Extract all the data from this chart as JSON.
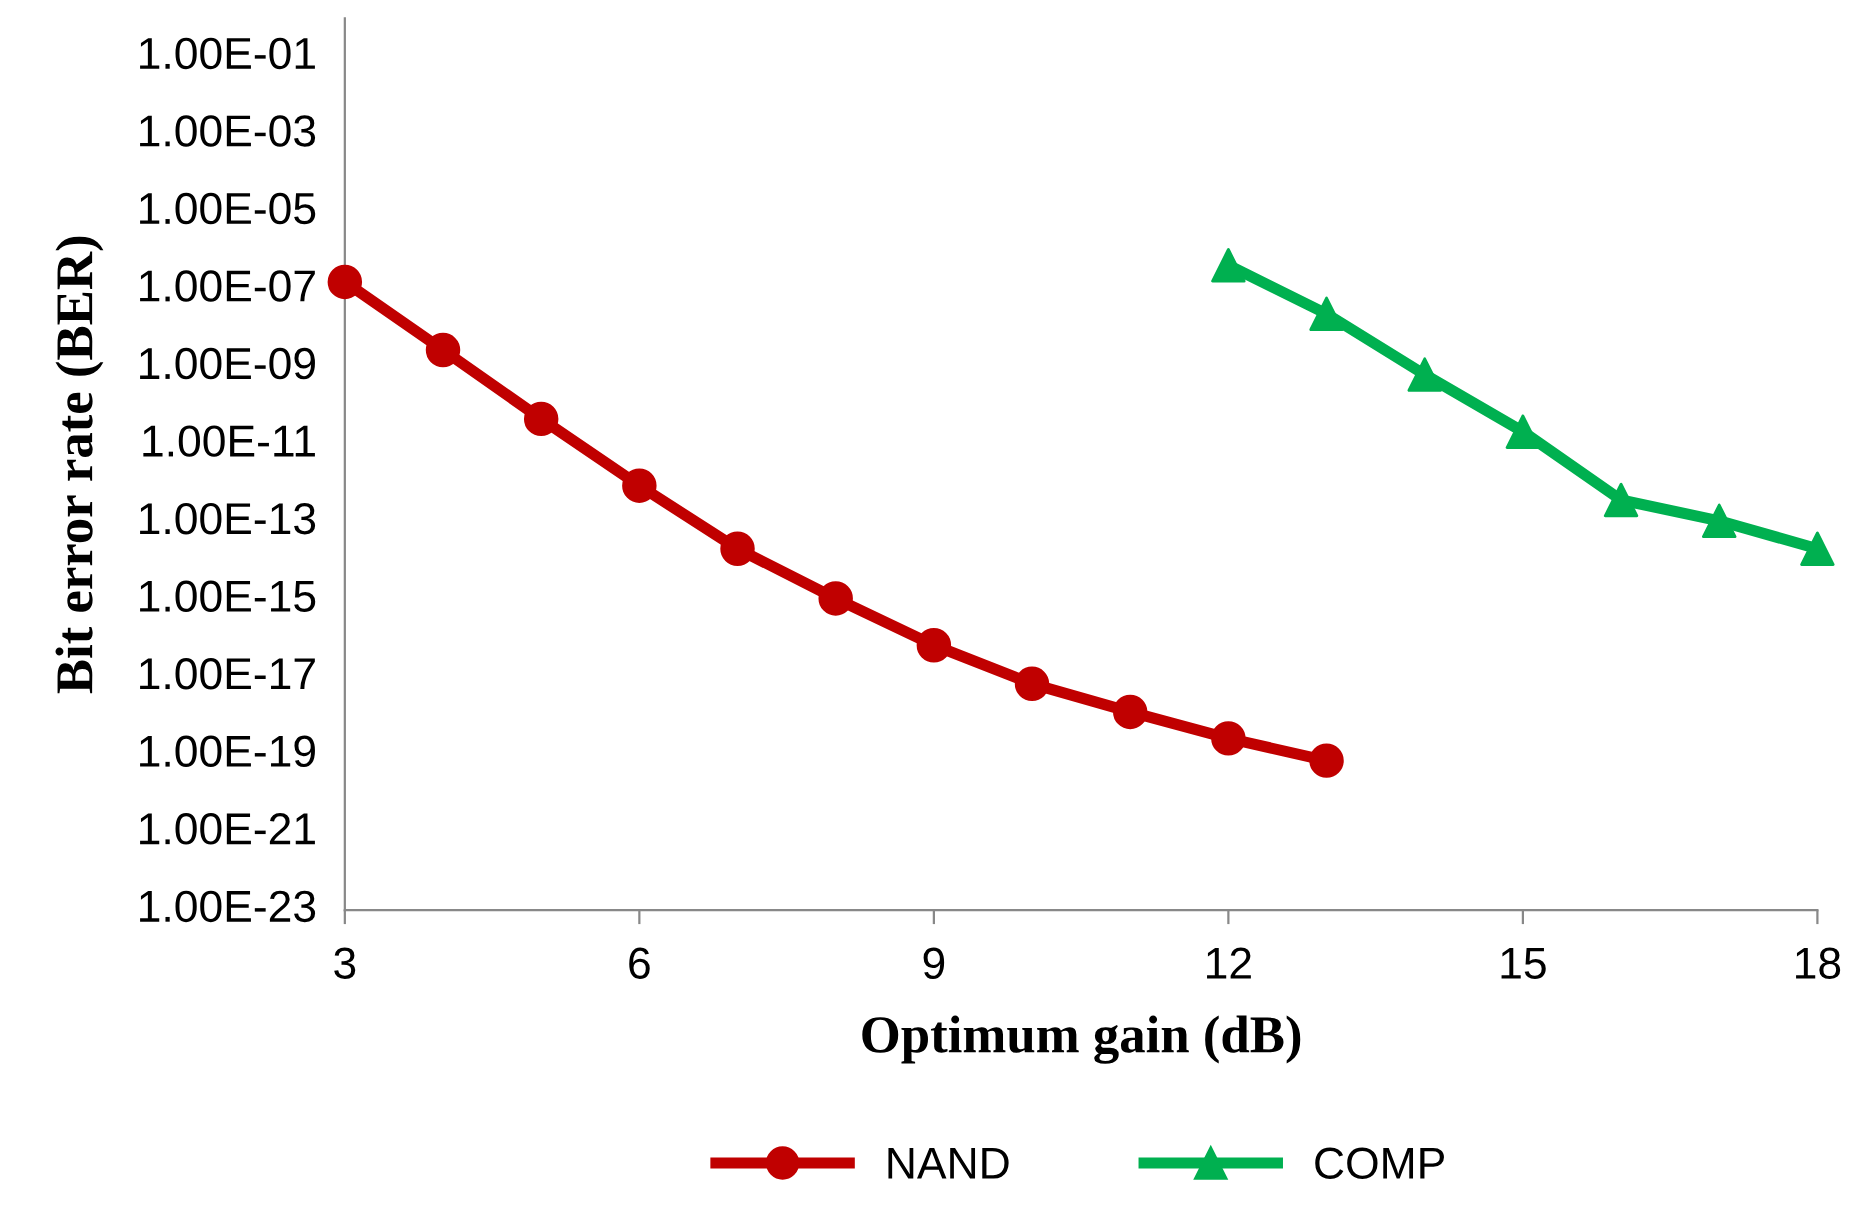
{
  "chart_data": {
    "type": "line",
    "xlabel": "Optimum gain (dB)",
    "ylabel": "Bit error rate (BER)",
    "log": "y",
    "xlim": [
      3,
      18
    ],
    "xticks": [
      3,
      6,
      9,
      12,
      15,
      18
    ],
    "ylim": [
      1e-23,
      1
    ],
    "yticks": [
      {
        "value": 0.1,
        "label": "1.00E-01"
      },
      {
        "value": 0.001,
        "label": "1.00E-03"
      },
      {
        "value": 1e-05,
        "label": "1.00E-05"
      },
      {
        "value": 1e-07,
        "label": "1.00E-07"
      },
      {
        "value": 1e-09,
        "label": "1.00E-09"
      },
      {
        "value": 1e-11,
        "label": "1.00E-11"
      },
      {
        "value": 1e-13,
        "label": "1.00E-13"
      },
      {
        "value": 1e-15,
        "label": "1.00E-15"
      },
      {
        "value": 1e-17,
        "label": "1.00E-17"
      },
      {
        "value": 1e-19,
        "label": "1.00E-19"
      },
      {
        "value": 1e-21,
        "label": "1.00E-21"
      },
      {
        "value": 1e-23,
        "label": "1.00E-23"
      }
    ],
    "grid": false,
    "legend": "bottom",
    "series": [
      {
        "name": "NAND",
        "color": "#c00000",
        "marker": "circle",
        "x": [
          3,
          4,
          5,
          6,
          7,
          8,
          9,
          10,
          11,
          12,
          13
        ],
        "values": [
          1.6e-07,
          2.8e-09,
          4.7e-11,
          8.9e-13,
          2.1e-14,
          1.1e-15,
          6.8e-17,
          6.9e-18,
          1.3e-18,
          2.7e-19,
          7.2e-20
        ]
      },
      {
        "name": "COMP",
        "color": "#00b050",
        "marker": "triangle",
        "x": [
          12,
          13,
          14,
          15,
          16,
          17,
          18
        ],
        "values": [
          4.3e-07,
          2.4e-08,
          6.5e-10,
          2.2e-11,
          3.8e-13,
          1.1e-13,
          2.1e-14
        ]
      }
    ]
  }
}
